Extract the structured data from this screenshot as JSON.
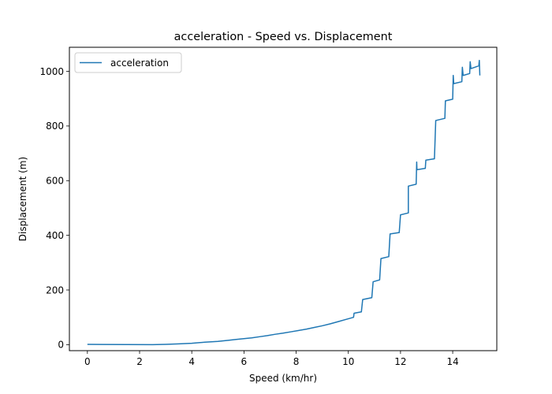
{
  "chart_data": {
    "type": "line",
    "title": "acceleration - Speed vs. Displacement",
    "xlabel": "Speed (km/hr)",
    "ylabel": "Displacement (m)",
    "xlim": [
      -0.69,
      15.69
    ],
    "ylim": [
      -22,
      1088
    ],
    "xticks": [
      0,
      2,
      4,
      6,
      8,
      10,
      12,
      14
    ],
    "yticks": [
      0,
      200,
      400,
      600,
      800,
      1000
    ],
    "grid": false,
    "legend_position": "upper-left",
    "series": [
      {
        "name": "acceleration",
        "color": "#1f77b4",
        "points": [
          [
            0,
            1
          ],
          [
            2.5,
            0
          ],
          [
            3.0,
            1
          ],
          [
            3.5,
            3
          ],
          [
            4.0,
            5
          ],
          [
            4.5,
            9
          ],
          [
            5.0,
            12
          ],
          [
            5.4,
            16
          ],
          [
            5.7,
            19
          ],
          [
            6.0,
            22
          ],
          [
            6.3,
            25
          ],
          [
            6.6,
            29
          ],
          [
            6.9,
            33
          ],
          [
            7.2,
            38
          ],
          [
            7.5,
            42
          ],
          [
            7.8,
            47
          ],
          [
            8.1,
            52
          ],
          [
            8.4,
            57
          ],
          [
            8.7,
            63
          ],
          [
            9.0,
            69
          ],
          [
            9.3,
            76
          ],
          [
            9.6,
            84
          ],
          [
            9.9,
            92
          ],
          [
            10.2,
            100
          ],
          [
            10.22,
            115
          ],
          [
            10.5,
            120
          ],
          [
            10.55,
            165
          ],
          [
            10.9,
            172
          ],
          [
            10.95,
            230
          ],
          [
            11.2,
            237
          ],
          [
            11.25,
            315
          ],
          [
            11.55,
            322
          ],
          [
            11.6,
            405
          ],
          [
            11.95,
            410
          ],
          [
            12.0,
            475
          ],
          [
            12.3,
            482
          ],
          [
            12.3,
            580
          ],
          [
            12.6,
            587
          ],
          [
            12.62,
            668
          ],
          [
            12.63,
            640
          ],
          [
            12.95,
            645
          ],
          [
            12.97,
            675
          ],
          [
            13.3,
            680
          ],
          [
            13.35,
            820
          ],
          [
            13.7,
            828
          ],
          [
            13.72,
            892
          ],
          [
            14.0,
            898
          ],
          [
            14.02,
            985
          ],
          [
            14.04,
            955
          ],
          [
            14.35,
            962
          ],
          [
            14.37,
            1015
          ],
          [
            14.4,
            985
          ],
          [
            14.65,
            992
          ],
          [
            14.67,
            1035
          ],
          [
            14.7,
            1010
          ],
          [
            15.0,
            1020
          ],
          [
            15.02,
            1040
          ],
          [
            15.04,
            985
          ]
        ]
      }
    ]
  }
}
